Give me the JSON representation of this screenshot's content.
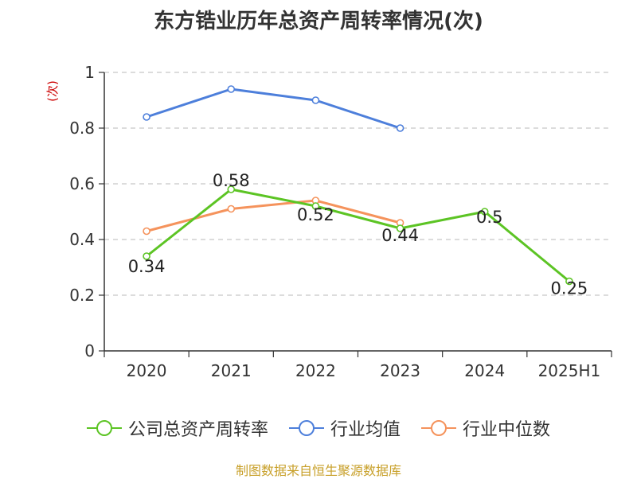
{
  "chart_data": {
    "type": "line",
    "title": "东方锆业历年总资产周转率情况(次)",
    "ylabel": "(次)",
    "xlabel": "",
    "categories": [
      "2020",
      "2021",
      "2022",
      "2023",
      "2024",
      "2025H1"
    ],
    "ylim": [
      0,
      1
    ],
    "yticks": [
      "0",
      "0.2",
      "0.4",
      "0.6",
      "0.8",
      "1"
    ],
    "ytick_values": [
      0,
      0.2,
      0.4,
      0.6,
      0.8,
      1
    ],
    "grid": true,
    "legend_position": "bottom",
    "series": [
      {
        "name": "公司总资产周转率",
        "color": "#5cc424",
        "values": [
          0.34,
          0.58,
          0.52,
          0.44,
          0.5,
          0.25
        ],
        "labels": [
          "0.34",
          "0.58",
          "0.52",
          "0.44",
          "0.5",
          "0.25"
        ]
      },
      {
        "name": "行业均值",
        "color": "#4d7fdb",
        "values": [
          0.84,
          0.94,
          0.9,
          0.8,
          null,
          null
        ]
      },
      {
        "name": "行业中位数",
        "color": "#f5935c",
        "values": [
          0.43,
          0.51,
          0.54,
          0.46,
          null,
          null
        ]
      }
    ]
  },
  "source_text": "制图数据来自恒生聚源数据库"
}
